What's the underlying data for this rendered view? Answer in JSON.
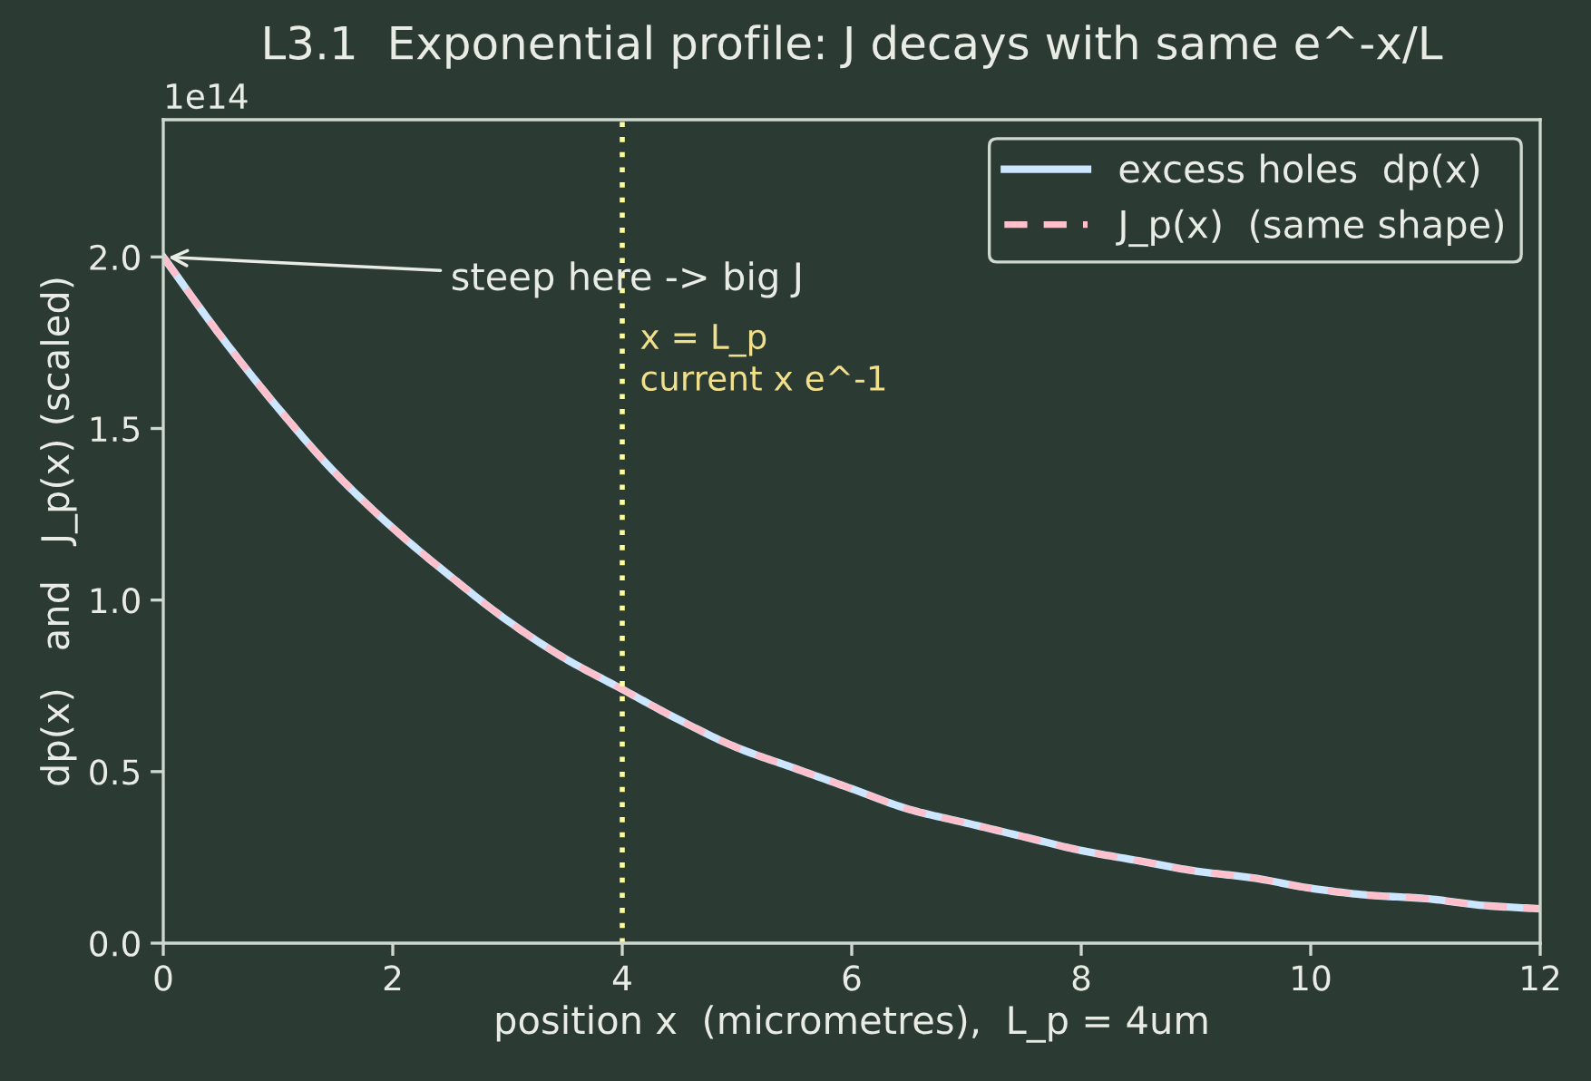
{
  "chart_data": {
    "type": "line",
    "title": "L3.1  Exponential profile: J decays with same e^-x/L",
    "xlabel": "position x  (micrometres),  L_p = 4um",
    "ylabel": "dp(x)   and   J_p(x) (scaled)",
    "series": [
      {
        "name": "excess holes  dp(x)",
        "color": "#cce6ff",
        "line_style": "solid",
        "x": [
          0,
          0.5,
          1,
          1.5,
          2,
          2.5,
          3,
          3.5,
          4,
          4.5,
          5,
          5.5,
          6,
          6.5,
          7,
          7.5,
          8,
          8.5,
          9,
          9.5,
          10,
          10.5,
          11,
          11.5,
          12
        ],
        "values": [
          2.0,
          1.77,
          1.56,
          1.37,
          1.21,
          1.07,
          0.94,
          0.83,
          0.74,
          0.65,
          0.57,
          0.51,
          0.45,
          0.39,
          0.35,
          0.31,
          0.27,
          0.24,
          0.21,
          0.19,
          0.16,
          0.14,
          0.13,
          0.11,
          0.1
        ]
      },
      {
        "name": "J_p(x)  (same shape)",
        "color": "#ffc0cb",
        "line_style": "dashed",
        "x": [
          0,
          0.5,
          1,
          1.5,
          2,
          2.5,
          3,
          3.5,
          4,
          4.5,
          5,
          5.5,
          6,
          6.5,
          7,
          7.5,
          8,
          8.5,
          9,
          9.5,
          10,
          10.5,
          11,
          11.5,
          12
        ],
        "values": [
          2.0,
          1.77,
          1.56,
          1.37,
          1.21,
          1.07,
          0.94,
          0.83,
          0.74,
          0.65,
          0.57,
          0.51,
          0.45,
          0.39,
          0.35,
          0.31,
          0.27,
          0.24,
          0.21,
          0.19,
          0.16,
          0.14,
          0.13,
          0.11,
          0.1
        ]
      }
    ],
    "xlim": [
      0,
      12
    ],
    "xticks": [
      0,
      2,
      4,
      6,
      8,
      10,
      12
    ],
    "ylim": [
      0,
      2.4
    ],
    "yticks": [
      {
        "value": 0,
        "label": "0.0"
      },
      0.5,
      {
        "value": 1,
        "label": "1.0"
      },
      1.5,
      {
        "value": 2,
        "label": "2.0"
      }
    ],
    "ref_lines": [
      {
        "axis": "x",
        "value": 4,
        "label": "x = L_p\ncurrent x e^-1",
        "color": "#ffff99",
        "line_style": "dotted"
      }
    ],
    "annotations": [
      "1e14",
      {
        "text": "steep here -> big J",
        "x": 0,
        "y": 2.0
      }
    ],
    "legend": "top right",
    "grid": false,
    "marker": "none"
  }
}
